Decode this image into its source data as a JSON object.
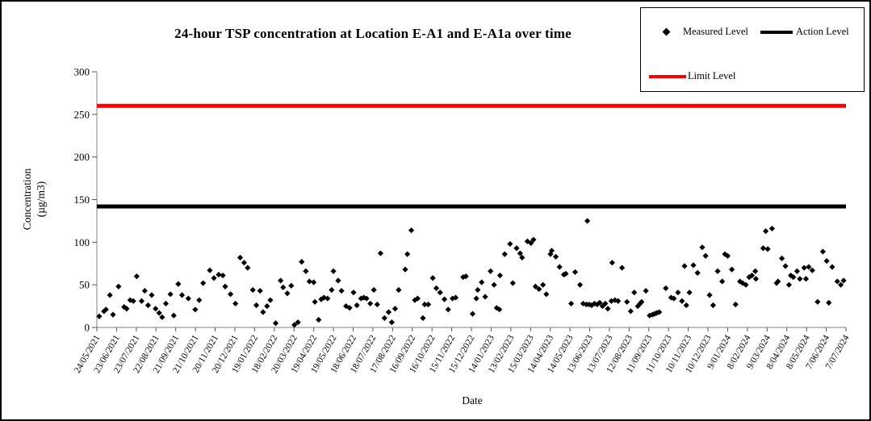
{
  "figure": {
    "background": "#ffffff",
    "border_color": "#000000"
  },
  "chart_data": {
    "type": "scatter",
    "title": "24-hour TSP concentration at Location E-A1 and E-A1a over time",
    "xlabel": "Date",
    "ylabel_line1": "Concentration",
    "ylabel_line2": "(µg/m3)",
    "ylim": [
      0,
      300
    ],
    "yticks": [
      0,
      50,
      100,
      150,
      200,
      250,
      300
    ],
    "grid": false,
    "legend_position": "top-right",
    "x_categories": [
      "24/05/2021",
      "23/06/2021",
      "23/07/2021",
      "22/08/2021",
      "21/09/2021",
      "21/10/2021",
      "20/11/2021",
      "20/12/2021",
      "19/01/2022",
      "18/02/2022",
      "20/03/2022",
      "19/04/2022",
      "19/05/2022",
      "18/06/2022",
      "18/07/2022",
      "17/08/2022",
      "16/09/2022",
      "16/10/2022",
      "15/11/2022",
      "15/12/2022",
      "14/01/2023",
      "13/02/2023",
      "15/03/2023",
      "14/04/2023",
      "14/05/2023",
      "13/06/2023",
      "13/07/2023",
      "12/08/2023",
      "11/09/2023",
      "11/10/2023",
      "10/11/2023",
      "10/12/2023",
      "9/01/2024",
      "8/02/2024",
      "9/03/2024",
      "8/04/2024",
      "8/05/2024",
      "7/06/2024",
      "7/07/2024"
    ],
    "points_format": "[month_tick_index_from_24-05-2021, concentration_ug_per_m3]",
    "series": [
      {
        "name": "Measured Level",
        "type": "scatter",
        "marker": "diamond",
        "color": "#000000",
        "points": [
          [
            0.12,
            13
          ],
          [
            0.36,
            19
          ],
          [
            0.46,
            21
          ],
          [
            0.66,
            38
          ],
          [
            0.82,
            15
          ],
          [
            1.1,
            48
          ],
          [
            1.38,
            24
          ],
          [
            1.51,
            22
          ],
          [
            1.69,
            32
          ],
          [
            1.85,
            31
          ],
          [
            2.02,
            60
          ],
          [
            2.27,
            31
          ],
          [
            2.43,
            43
          ],
          [
            2.6,
            26
          ],
          [
            2.78,
            38
          ],
          [
            2.98,
            22
          ],
          [
            3.16,
            17
          ],
          [
            3.31,
            12
          ],
          [
            3.5,
            28
          ],
          [
            3.73,
            39
          ],
          [
            3.9,
            14
          ],
          [
            4.13,
            51
          ],
          [
            4.32,
            38
          ],
          [
            4.64,
            34
          ],
          [
            4.99,
            21
          ],
          [
            5.19,
            32
          ],
          [
            5.39,
            52
          ],
          [
            5.73,
            67
          ],
          [
            5.94,
            58
          ],
          [
            6.18,
            62
          ],
          [
            6.39,
            61
          ],
          [
            6.51,
            48
          ],
          [
            6.78,
            39
          ],
          [
            7.03,
            28
          ],
          [
            7.27,
            82
          ],
          [
            7.47,
            76
          ],
          [
            7.65,
            70
          ],
          [
            7.91,
            44
          ],
          [
            8.09,
            26
          ],
          [
            8.28,
            43
          ],
          [
            8.43,
            18
          ],
          [
            8.63,
            25
          ],
          [
            8.8,
            32
          ],
          [
            9.07,
            5
          ],
          [
            9.32,
            55
          ],
          [
            9.45,
            47
          ],
          [
            9.66,
            40
          ],
          [
            9.86,
            49
          ],
          [
            10.02,
            3
          ],
          [
            10.2,
            6
          ],
          [
            10.39,
            77
          ],
          [
            10.6,
            66
          ],
          [
            10.78,
            54
          ],
          [
            11.0,
            53
          ],
          [
            11.06,
            30
          ],
          [
            11.25,
            9
          ],
          [
            11.38,
            33
          ],
          [
            11.52,
            35
          ],
          [
            11.7,
            34
          ],
          [
            11.91,
            44
          ],
          [
            12.0,
            66
          ],
          [
            12.24,
            55
          ],
          [
            12.41,
            43
          ],
          [
            12.64,
            25
          ],
          [
            12.82,
            23
          ],
          [
            13.02,
            41
          ],
          [
            13.19,
            26
          ],
          [
            13.4,
            34
          ],
          [
            13.54,
            35
          ],
          [
            13.68,
            34
          ],
          [
            13.87,
            28
          ],
          [
            14.05,
            44
          ],
          [
            14.22,
            27
          ],
          [
            14.39,
            87
          ],
          [
            14.59,
            11
          ],
          [
            14.8,
            18
          ],
          [
            14.96,
            6
          ],
          [
            15.13,
            22
          ],
          [
            15.31,
            44
          ],
          [
            15.64,
            68
          ],
          [
            15.75,
            86
          ],
          [
            15.95,
            114
          ],
          [
            16.13,
            32
          ],
          [
            16.27,
            34
          ],
          [
            16.54,
            11
          ],
          [
            16.63,
            27
          ],
          [
            16.81,
            27
          ],
          [
            17.04,
            58
          ],
          [
            17.22,
            46
          ],
          [
            17.41,
            41
          ],
          [
            17.63,
            33
          ],
          [
            17.82,
            21
          ],
          [
            18.04,
            34
          ],
          [
            18.2,
            35
          ],
          [
            18.58,
            59
          ],
          [
            18.72,
            60
          ],
          [
            19.06,
            16
          ],
          [
            19.25,
            34
          ],
          [
            19.32,
            44
          ],
          [
            19.52,
            53
          ],
          [
            19.7,
            36
          ],
          [
            19.97,
            66
          ],
          [
            20.15,
            50
          ],
          [
            20.28,
            23
          ],
          [
            20.42,
            21
          ],
          [
            20.45,
            61
          ],
          [
            20.69,
            86
          ],
          [
            20.96,
            98
          ],
          [
            21.1,
            52
          ],
          [
            21.29,
            93
          ],
          [
            21.47,
            87
          ],
          [
            21.57,
            82
          ],
          [
            21.84,
            101
          ],
          [
            22.02,
            99
          ],
          [
            22.15,
            103
          ],
          [
            22.25,
            48
          ],
          [
            22.43,
            45
          ],
          [
            22.63,
            50
          ],
          [
            22.8,
            39
          ],
          [
            23.01,
            86
          ],
          [
            23.07,
            90
          ],
          [
            23.28,
            83
          ],
          [
            23.47,
            71
          ],
          [
            23.69,
            62
          ],
          [
            23.79,
            63
          ],
          [
            24.06,
            28
          ],
          [
            24.26,
            65
          ],
          [
            24.51,
            50
          ],
          [
            24.67,
            28
          ],
          [
            24.83,
            27
          ],
          [
            24.88,
            125
          ],
          [
            24.97,
            27
          ],
          [
            25.1,
            26
          ],
          [
            25.24,
            28
          ],
          [
            25.38,
            27
          ],
          [
            25.51,
            29
          ],
          [
            25.65,
            25
          ],
          [
            25.79,
            28
          ],
          [
            25.92,
            22
          ],
          [
            26.1,
            31
          ],
          [
            26.14,
            76
          ],
          [
            26.28,
            32
          ],
          [
            26.44,
            31
          ],
          [
            26.64,
            70
          ],
          [
            26.89,
            30
          ],
          [
            27.08,
            19
          ],
          [
            27.26,
            41
          ],
          [
            27.44,
            25
          ],
          [
            27.56,
            28
          ],
          [
            27.63,
            30
          ],
          [
            27.85,
            43
          ],
          [
            28.04,
            14
          ],
          [
            28.18,
            15
          ],
          [
            28.29,
            16
          ],
          [
            28.4,
            17
          ],
          [
            28.53,
            18
          ],
          [
            28.86,
            46
          ],
          [
            29.13,
            35
          ],
          [
            29.27,
            34
          ],
          [
            29.48,
            41
          ],
          [
            29.68,
            31
          ],
          [
            29.81,
            72
          ],
          [
            29.9,
            26
          ],
          [
            30.06,
            41
          ],
          [
            30.26,
            73
          ],
          [
            30.47,
            64
          ],
          [
            30.71,
            94
          ],
          [
            30.88,
            84
          ],
          [
            31.08,
            38
          ],
          [
            31.26,
            26
          ],
          [
            31.49,
            66
          ],
          [
            31.72,
            54
          ],
          [
            31.86,
            86
          ],
          [
            32.0,
            84
          ],
          [
            32.21,
            68
          ],
          [
            32.4,
            27
          ],
          [
            32.62,
            54
          ],
          [
            32.76,
            52
          ],
          [
            32.92,
            50
          ],
          [
            33.09,
            59
          ],
          [
            33.23,
            61
          ],
          [
            33.4,
            66
          ],
          [
            33.43,
            57
          ],
          [
            33.8,
            93
          ],
          [
            33.93,
            113
          ],
          [
            34.03,
            92
          ],
          [
            34.25,
            116
          ],
          [
            34.48,
            52
          ],
          [
            34.55,
            54
          ],
          [
            34.75,
            81
          ],
          [
            34.93,
            72
          ],
          [
            35.11,
            50
          ],
          [
            35.2,
            61
          ],
          [
            35.33,
            59
          ],
          [
            35.52,
            66
          ],
          [
            35.66,
            57
          ],
          [
            35.88,
            70
          ],
          [
            35.97,
            57
          ],
          [
            36.11,
            71
          ],
          [
            36.29,
            67
          ],
          [
            36.56,
            30
          ],
          [
            36.83,
            89
          ],
          [
            37.02,
            78
          ],
          [
            37.13,
            29
          ],
          [
            37.3,
            71
          ],
          [
            37.56,
            54
          ],
          [
            37.74,
            50
          ],
          [
            37.88,
            55
          ]
        ]
      },
      {
        "name": "Action Level",
        "type": "hline",
        "value": 142,
        "color": "#000000"
      },
      {
        "name": "Limit Level",
        "type": "hline",
        "value": 260,
        "color": "#ff0000"
      }
    ]
  }
}
